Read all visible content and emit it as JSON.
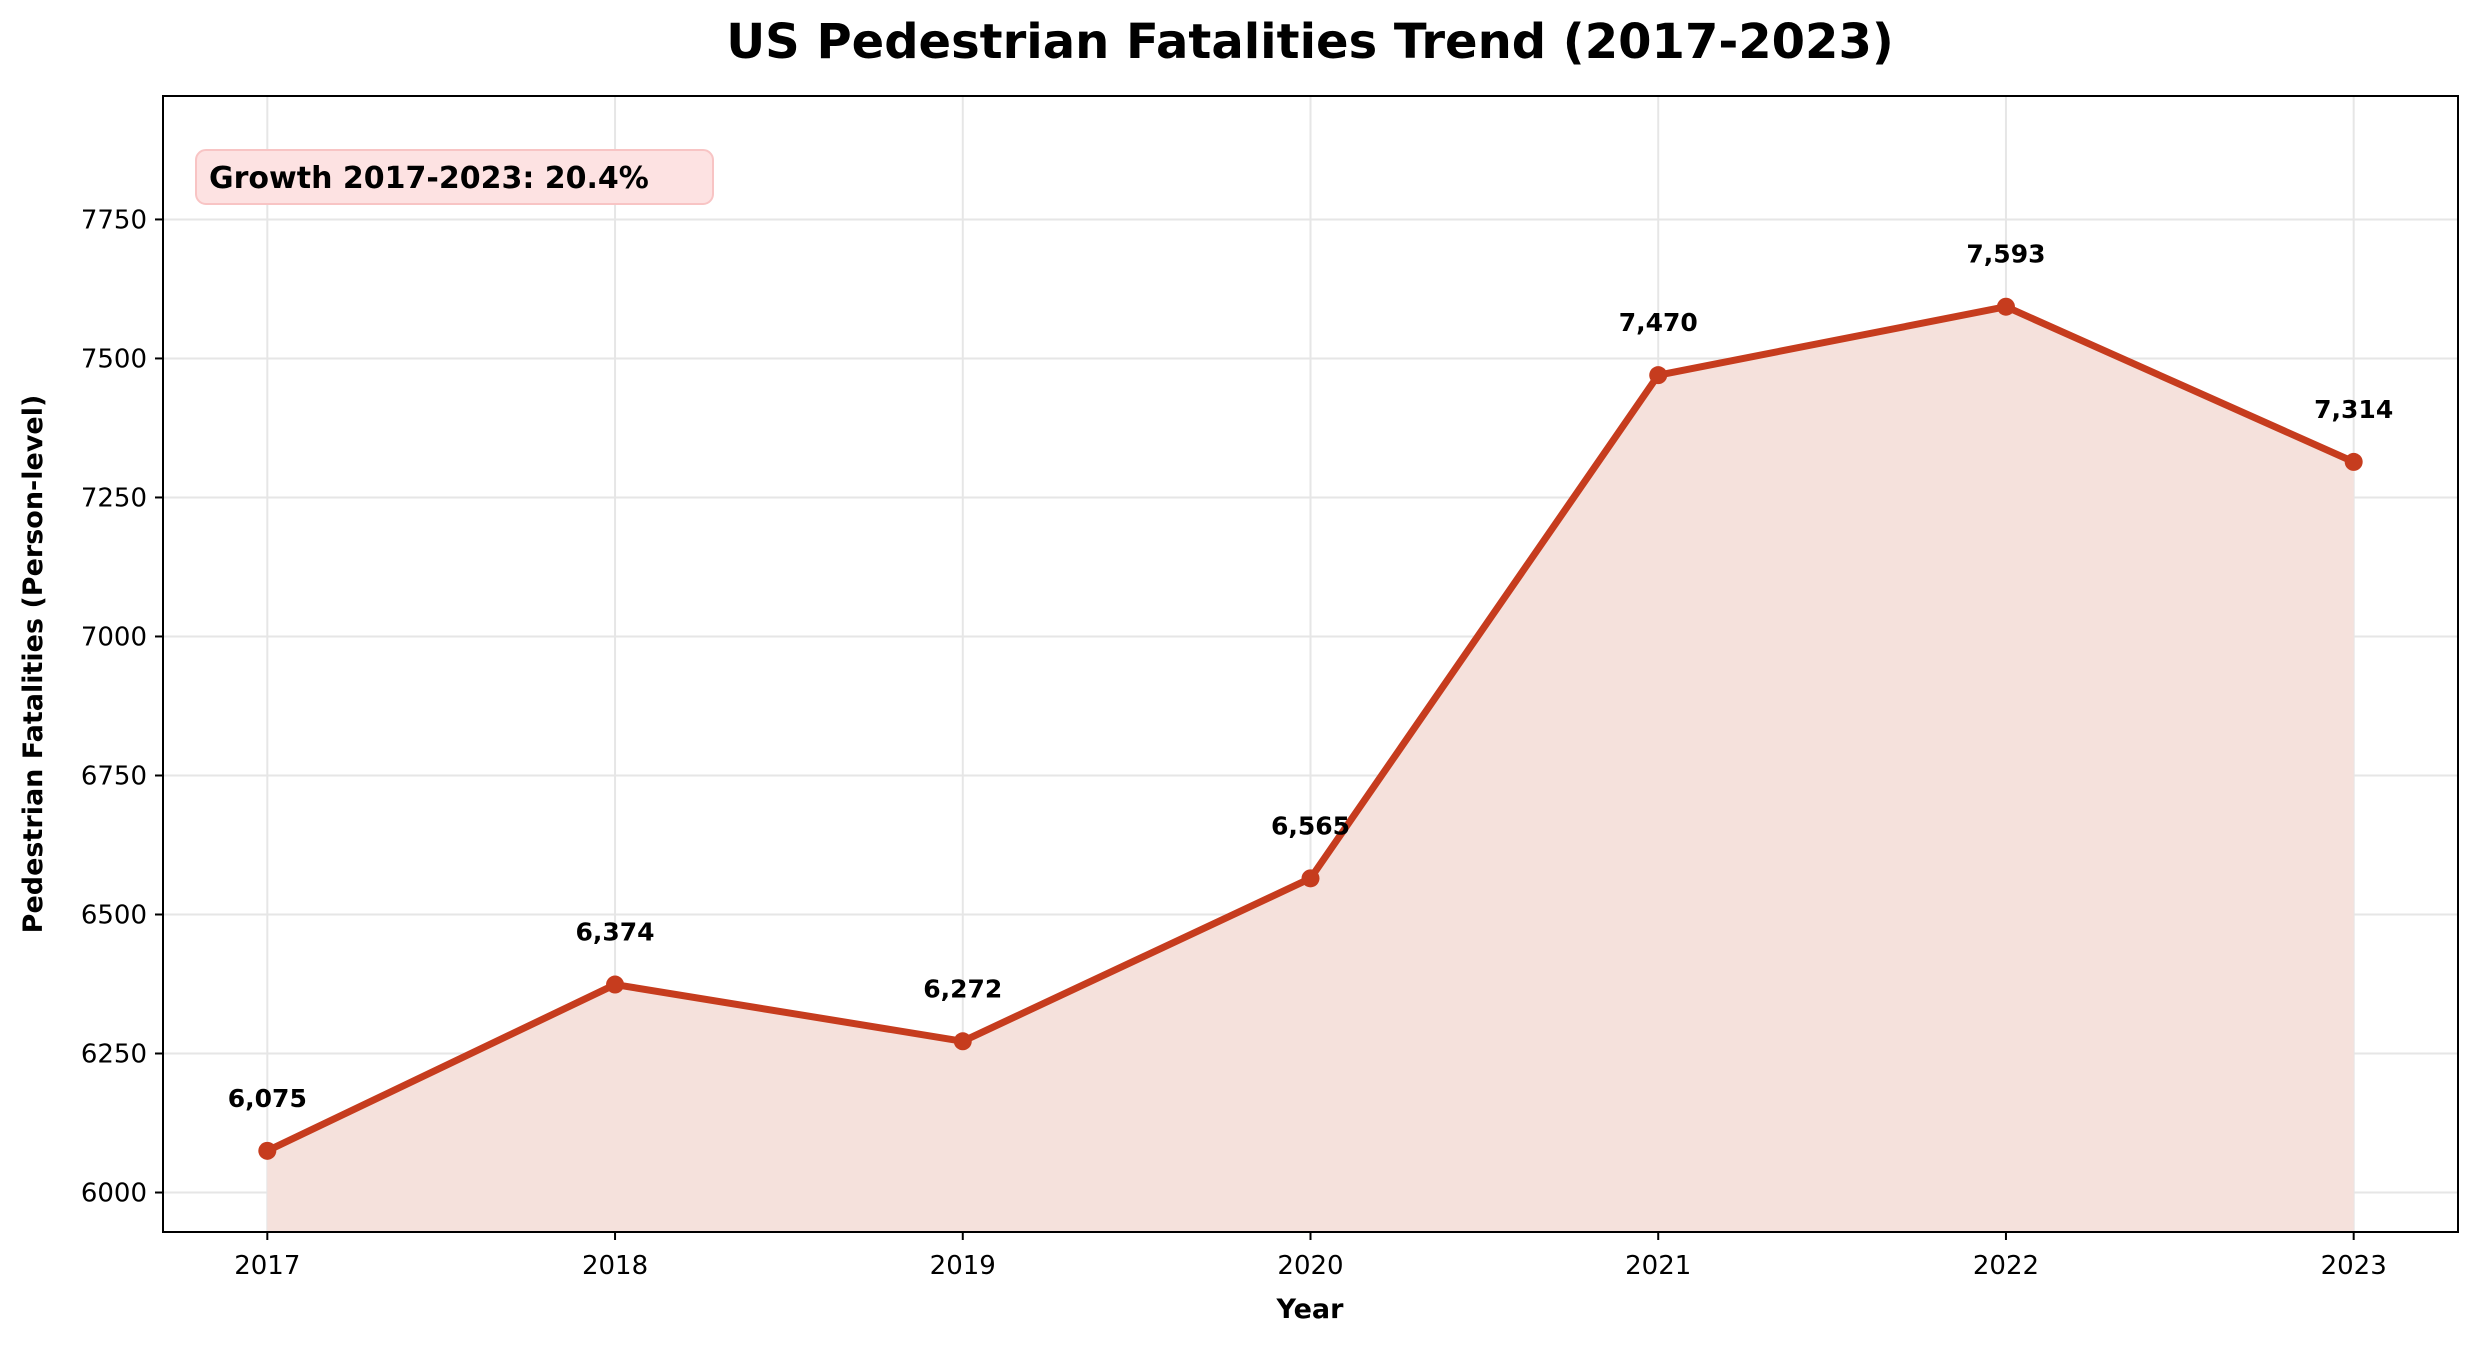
{
  "chart_data": {
    "type": "line",
    "title": "US Pedestrian Fatalities Trend (2017-2023)",
    "xlabel": "Year",
    "ylabel": "Pedestrian Fatalities (Person-level)",
    "x": [
      2017,
      2018,
      2019,
      2020,
      2021,
      2022,
      2023
    ],
    "values": [
      6075,
      6374,
      6272,
      6565,
      7470,
      7593,
      7314
    ],
    "data_labels": [
      "6,075",
      "6,374",
      "6,272",
      "6,565",
      "7,470",
      "7,593",
      "7,314"
    ],
    "xticks": [
      "2017",
      "2018",
      "2019",
      "2020",
      "2021",
      "2022",
      "2023"
    ],
    "yticks": [
      6000,
      6250,
      6500,
      6750,
      7000,
      7250,
      7500,
      7750
    ],
    "xlim": [
      2016.7,
      2023.3
    ],
    "ylim": [
      5929,
      7972
    ],
    "grid": true,
    "area_fill": true,
    "annotation": "Growth 2017-2023: 20.4%",
    "colors": {
      "line": "#c63c1e",
      "fill": "#f5e1dc",
      "annotation_bg": "#fde2e2",
      "annotation_border": "#f8c4c4",
      "grid": "#e6e6e6"
    }
  }
}
